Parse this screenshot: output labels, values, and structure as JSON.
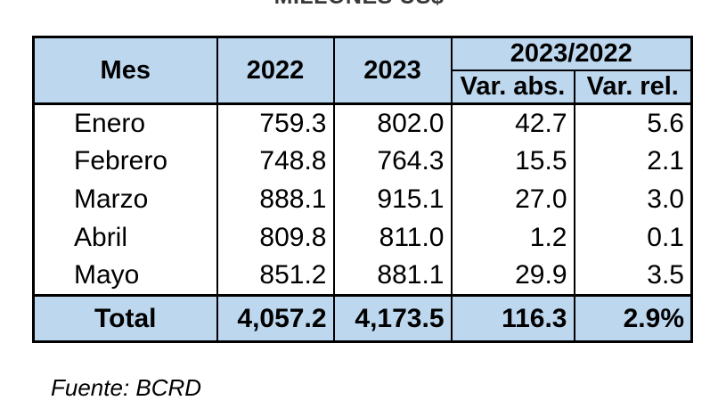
{
  "title": "MILLONES US$",
  "table": {
    "headers": {
      "mes": "Mes",
      "y2022": "2022",
      "y2023": "2023",
      "variation_group": "2023/2022",
      "var_abs": "Var. abs.",
      "var_rel": "Var. rel."
    },
    "rows": [
      {
        "mes": "Enero",
        "y2022": "759.3",
        "y2023": "802.0",
        "var_abs": "42.7",
        "var_rel": "5.6"
      },
      {
        "mes": "Febrero",
        "y2022": "748.8",
        "y2023": "764.3",
        "var_abs": "15.5",
        "var_rel": "2.1"
      },
      {
        "mes": "Marzo",
        "y2022": "888.1",
        "y2023": "915.1",
        "var_abs": "27.0",
        "var_rel": "3.0"
      },
      {
        "mes": "Abril",
        "y2022": "809.8",
        "y2023": "811.0",
        "var_abs": "1.2",
        "var_rel": "0.1"
      },
      {
        "mes": "Mayo",
        "y2022": "851.2",
        "y2023": "881.1",
        "var_abs": "29.9",
        "var_rel": "3.5"
      }
    ],
    "total": {
      "label": "Total",
      "y2022": "4,057.2",
      "y2023": "4,173.5",
      "var_abs": "116.3",
      "var_rel": "2.9%"
    }
  },
  "footer": {
    "source": "Fuente: BCRD"
  },
  "colors": {
    "header_bg": "#BDD7EE",
    "border": "#000000"
  },
  "chart_data": {
    "type": "table",
    "title": "MILLONES US$",
    "columns": [
      "Mes",
      "2022",
      "2023",
      "Var. abs.",
      "Var. rel."
    ],
    "rows": [
      [
        "Enero",
        759.3,
        802.0,
        42.7,
        5.6
      ],
      [
        "Febrero",
        748.8,
        764.3,
        15.5,
        2.1
      ],
      [
        "Marzo",
        888.1,
        915.1,
        27.0,
        3.0
      ],
      [
        "Abril",
        809.8,
        811.0,
        1.2,
        0.1
      ],
      [
        "Mayo",
        851.2,
        881.1,
        29.9,
        3.5
      ],
      [
        "Total",
        4057.2,
        4173.5,
        116.3,
        "2.9%"
      ]
    ],
    "source": "Fuente: BCRD"
  }
}
